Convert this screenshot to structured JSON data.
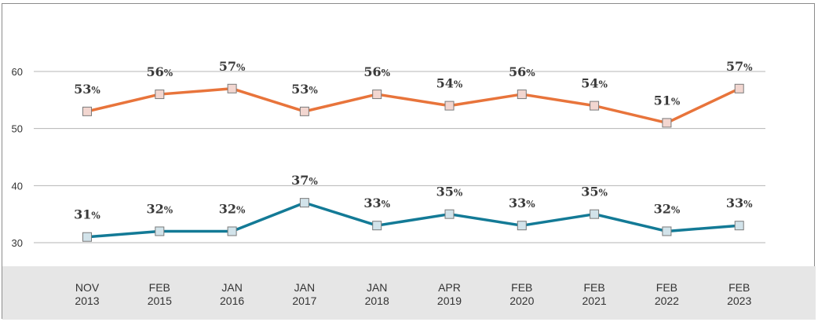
{
  "chart_data": {
    "type": "line",
    "categories": [
      [
        "NOV",
        "2013"
      ],
      [
        "FEB",
        "2015"
      ],
      [
        "JAN",
        "2016"
      ],
      [
        "JAN",
        "2017"
      ],
      [
        "JAN",
        "2018"
      ],
      [
        "APR",
        "2019"
      ],
      [
        "FEB",
        "2020"
      ],
      [
        "FEB",
        "2021"
      ],
      [
        "FEB",
        "2022"
      ],
      [
        "FEB",
        "2023"
      ]
    ],
    "yticks": [
      "30",
      "40",
      "50",
      "60"
    ],
    "ylim": [
      30,
      60
    ],
    "grid": true,
    "value_suffix": "%",
    "series": [
      {
        "values": [
          53,
          56,
          57,
          53,
          56,
          54,
          56,
          54,
          51,
          57
        ],
        "color": "#e8743b",
        "marker_fill": "#f2d6d0"
      },
      {
        "values": [
          31,
          32,
          32,
          37,
          33,
          35,
          33,
          35,
          32,
          33
        ],
        "color": "#137a96",
        "marker_fill": "#d2e3ea"
      }
    ]
  }
}
